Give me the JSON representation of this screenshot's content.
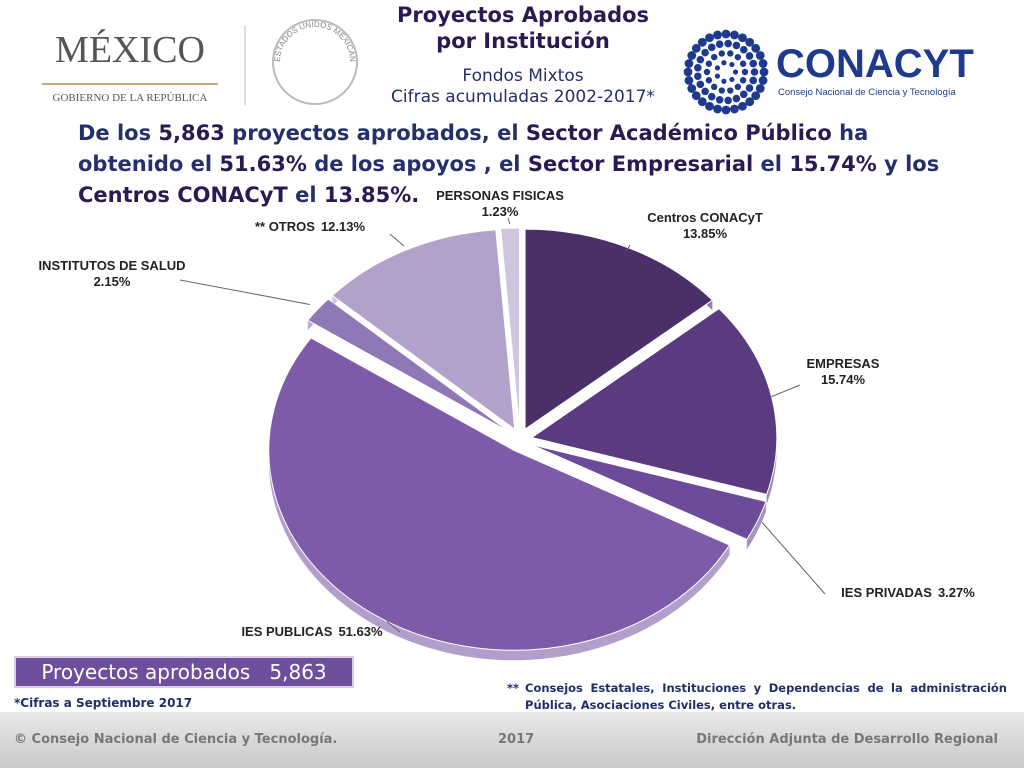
{
  "header": {
    "mexico": "MÉXICO",
    "gobierno": "GOBIERNO DE LA REPÚBLICA",
    "seal": "ESTADOS UNIDOS MEXICANOS",
    "conacyt": "CONACYT",
    "conacyt_sub": "Consejo Nacional de Ciencia y Tecnología"
  },
  "title": {
    "line1": "Proyectos Aprobados",
    "line2": "por Institución",
    "line3": "Fondos  Mixtos",
    "line4": "Cifras acumuladas 2002-2017*"
  },
  "headline": [
    "De  los ",
    "5,863",
    " proyectos aprobados, el ",
    "Sector Académico Público",
    " ha obtenido el ",
    "51.63%",
    " de los apoyos , el ",
    "Sector  Empresarial",
    " el ",
    "15.74%",
    " y los ",
    "Centros CONACyT",
    " el ",
    "13.85%."
  ],
  "chart_data": {
    "type": "pie",
    "categories": [
      "Centros CONACyT",
      "EMPRESAS",
      "IES PRIVADAS",
      "IES PUBLICAS",
      "INSTITUTOS DE SALUD",
      "** OTROS",
      "PERSONAS FISICAS"
    ],
    "values": [
      13.85,
      15.74,
      3.27,
      51.63,
      2.15,
      12.13,
      1.23
    ],
    "value_labels": [
      "13.85%",
      "15.74%",
      "3.27%",
      "51.63%",
      "2.15%",
      "12.13%",
      "1.23%"
    ],
    "colors": [
      "#4b2f68",
      "#5a3b80",
      "#6b4b9a",
      "#7e5ba9",
      "#9077b6",
      "#b2a2cb",
      "#cfc5df"
    ]
  },
  "summary": "Proyectos aprobados   5,863",
  "note": "*Cifras a Septiembre 2017",
  "footnote": {
    "mark": "**",
    "text": "Consejos Estatales, Instituciones y Dependencias de la administración Pública, Asociaciones Civiles, entre otras."
  },
  "footer": {
    "left": "© Consejo Nacional de Ciencia y Tecnología.",
    "center": "2017",
    "right": "Dirección Adjunta de Desarrollo Regional"
  }
}
